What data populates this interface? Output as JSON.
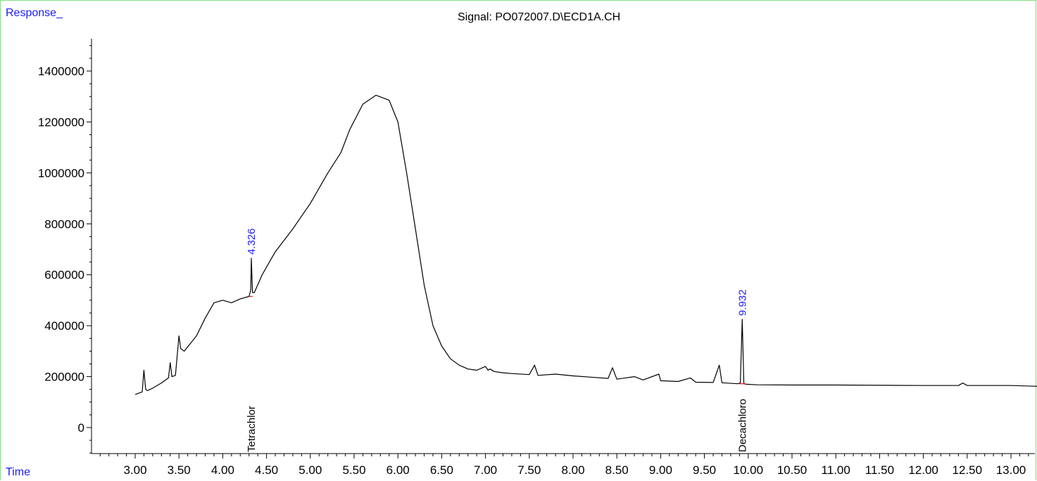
{
  "chart_data": {
    "type": "line",
    "title": "Signal: PO072007.D\\ECD1A.CH",
    "xlabel": "Time",
    "ylabel": "Response_",
    "xlim": [
      2.6,
      13.3
    ],
    "ylim": [
      -130000,
      1560000
    ],
    "x_ticks": [
      "3.00",
      "3.50",
      "4.00",
      "4.50",
      "5.00",
      "5.50",
      "6.00",
      "6.50",
      "7.00",
      "7.50",
      "8.00",
      "8.50",
      "9.00",
      "9.50",
      "10.00",
      "10.50",
      "11.00",
      "11.50",
      "12.00",
      "12.50",
      "13.00"
    ],
    "y_ticks": [
      "0",
      "200000",
      "400000",
      "600000",
      "800000",
      "1000000",
      "1200000",
      "1400000"
    ],
    "grid": false,
    "series": [
      {
        "color": "#000000",
        "x": [
          3.0,
          3.08,
          3.1,
          3.12,
          3.14,
          3.2,
          3.3,
          3.38,
          3.4,
          3.42,
          3.46,
          3.5,
          3.52,
          3.56,
          3.7,
          3.8,
          3.9,
          4.0,
          4.1,
          4.2,
          4.3,
          4.32,
          4.326,
          4.34,
          4.36,
          4.45,
          4.6,
          4.8,
          5.0,
          5.2,
          5.35,
          5.45,
          5.6,
          5.75,
          5.9,
          6.0,
          6.1,
          6.2,
          6.3,
          6.4,
          6.5,
          6.6,
          6.7,
          6.8,
          6.9,
          7.0,
          7.03,
          7.05,
          7.1,
          7.2,
          7.3,
          7.5,
          7.56,
          7.6,
          7.8,
          8.0,
          8.2,
          8.4,
          8.45,
          8.5,
          8.7,
          8.8,
          8.98,
          9.0,
          9.2,
          9.34,
          9.4,
          9.6,
          9.67,
          9.7,
          9.88,
          9.91,
          9.932,
          9.95,
          9.98,
          10.1,
          10.5,
          11.0,
          11.5,
          12.0,
          12.4,
          12.45,
          12.5,
          13.0,
          13.3
        ],
        "values": [
          130000,
          140000,
          225000,
          150000,
          145000,
          155000,
          175000,
          195000,
          255000,
          200000,
          205000,
          360000,
          310000,
          300000,
          360000,
          430000,
          490000,
          500000,
          490000,
          505000,
          515000,
          540000,
          665000,
          530000,
          530000,
          600000,
          690000,
          780000,
          880000,
          1000000,
          1080000,
          1170000,
          1270000,
          1305000,
          1285000,
          1200000,
          1000000,
          780000,
          560000,
          400000,
          320000,
          270000,
          245000,
          230000,
          225000,
          240000,
          225000,
          230000,
          220000,
          215000,
          212000,
          208000,
          245000,
          205000,
          210000,
          203000,
          198000,
          193000,
          235000,
          190000,
          200000,
          187000,
          210000,
          184000,
          181000,
          195000,
          178000,
          177000,
          245000,
          176000,
          172000,
          175000,
          425000,
          172000,
          170000,
          168000,
          167000,
          167000,
          166000,
          165000,
          165000,
          175000,
          165000,
          165000,
          162000
        ]
      }
    ],
    "peak_labels": [
      {
        "x": 4.326,
        "y": 665000,
        "text": "4.326"
      },
      {
        "x": 9.932,
        "y": 425000,
        "text": "9.932"
      }
    ],
    "compound_labels": [
      {
        "x": 4.326,
        "text": "Tetrachlor"
      },
      {
        "x": 9.932,
        "text": "Decachloro"
      }
    ],
    "colors": {
      "trace": "#000000",
      "peak_label": "#1a1aff",
      "axis_title": "#1a1aff",
      "frame": "#7fe07f",
      "baseline_mark": "#ff0000"
    }
  }
}
